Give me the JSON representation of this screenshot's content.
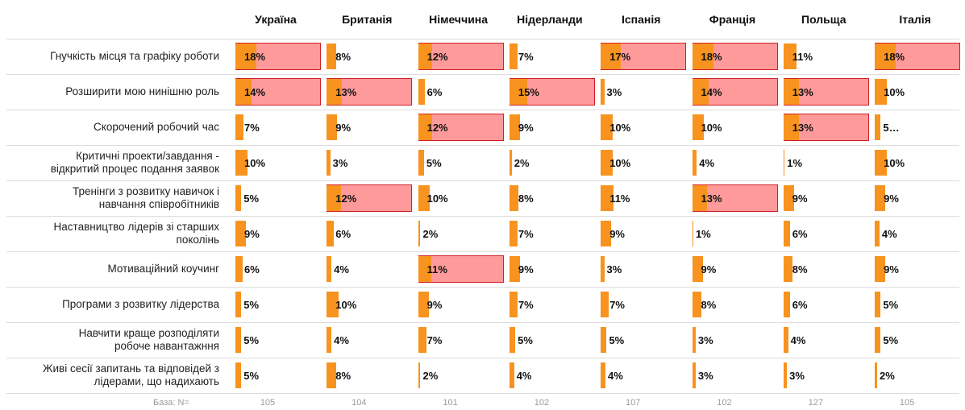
{
  "chart_data": {
    "type": "bar",
    "categories": [
      "Гнучкість місця та графіку роботи",
      "Розширити мою нинішню роль",
      "Скорочений робочий час",
      "Критичні проекти/завдання -\nвідкритий процес подання заявок",
      "Тренінги з розвитку навичок і\nнавчання співробітників",
      "Наставництво лідерів зі старших\nпоколінь",
      "Мотиваційний коучинг",
      "Програми з розвитку лідерства",
      "Навчити краще розподіляти\nробоче навантажння",
      "Живі сесії запитань та відповідей з\nлідерами, що надихають"
    ],
    "bar_color": "#f7931e",
    "highlight_color": "#ff9a9a",
    "highlight_border": "#d0202a",
    "series": [
      {
        "name": "Україна",
        "values": [
          18,
          14,
          7,
          10,
          5,
          9,
          6,
          5,
          5,
          5
        ],
        "value_labels": [
          "18%",
          "14%",
          "7%",
          "10%",
          "5%",
          "9%",
          "6%",
          "5%",
          "5%",
          "5%"
        ],
        "highlight": [
          0,
          1
        ]
      },
      {
        "name": "Британія",
        "values": [
          8,
          13,
          9,
          3,
          12,
          6,
          4,
          10,
          4,
          8
        ],
        "value_labels": [
          "8%",
          "13%",
          "9%",
          "3%",
          "12%",
          "6%",
          "4%",
          "10%",
          "4%",
          "8%"
        ],
        "highlight": [
          1,
          4
        ]
      },
      {
        "name": "Німеччина",
        "values": [
          12,
          6,
          12,
          5,
          10,
          2,
          11,
          9,
          7,
          2
        ],
        "value_labels": [
          "12%",
          "6%",
          "12%",
          "5%",
          "10%",
          "2%",
          "11%",
          "9%",
          "7%",
          "2%"
        ],
        "highlight": [
          0,
          2,
          6
        ]
      },
      {
        "name": "Нідерланди",
        "values": [
          7,
          15,
          9,
          2,
          8,
          7,
          9,
          7,
          5,
          4
        ],
        "value_labels": [
          "7%",
          "15%",
          "9%",
          "2%",
          "8%",
          "7%",
          "9%",
          "7%",
          "5%",
          "4%"
        ],
        "highlight": [
          1
        ]
      },
      {
        "name": "Іспанія",
        "values": [
          17,
          3,
          10,
          10,
          11,
          9,
          3,
          7,
          5,
          4
        ],
        "value_labels": [
          "17%",
          "3%",
          "10%",
          "10%",
          "11%",
          "9%",
          "3%",
          "7%",
          "5%",
          "4%"
        ],
        "highlight": [
          0
        ]
      },
      {
        "name": "Франція",
        "values": [
          18,
          14,
          10,
          4,
          13,
          1,
          9,
          8,
          3,
          3
        ],
        "value_labels": [
          "18%",
          "14%",
          "10%",
          "4%",
          "13%",
          "1%",
          "9%",
          "8%",
          "3%",
          "3%"
        ],
        "highlight": [
          0,
          1,
          4
        ]
      },
      {
        "name": "Польща",
        "values": [
          11,
          13,
          13,
          1,
          9,
          6,
          8,
          6,
          4,
          3
        ],
        "value_labels": [
          "11%",
          "13%",
          "13%",
          "1%",
          "9%",
          "6%",
          "8%",
          "6%",
          "4%",
          "3%"
        ],
        "highlight": [
          1,
          2
        ]
      },
      {
        "name": "Італія",
        "values": [
          18,
          10,
          5,
          10,
          9,
          4,
          9,
          5,
          5,
          2
        ],
        "value_labels": [
          "18%",
          "10%",
          "5…",
          "10%",
          "9%",
          "4%",
          "9%",
          "5%",
          "5%",
          "2%"
        ],
        "highlight": [
          0
        ]
      }
    ],
    "base": {
      "label": "База: N=",
      "values": [
        105,
        104,
        101,
        102,
        107,
        102,
        127,
        105
      ]
    }
  }
}
